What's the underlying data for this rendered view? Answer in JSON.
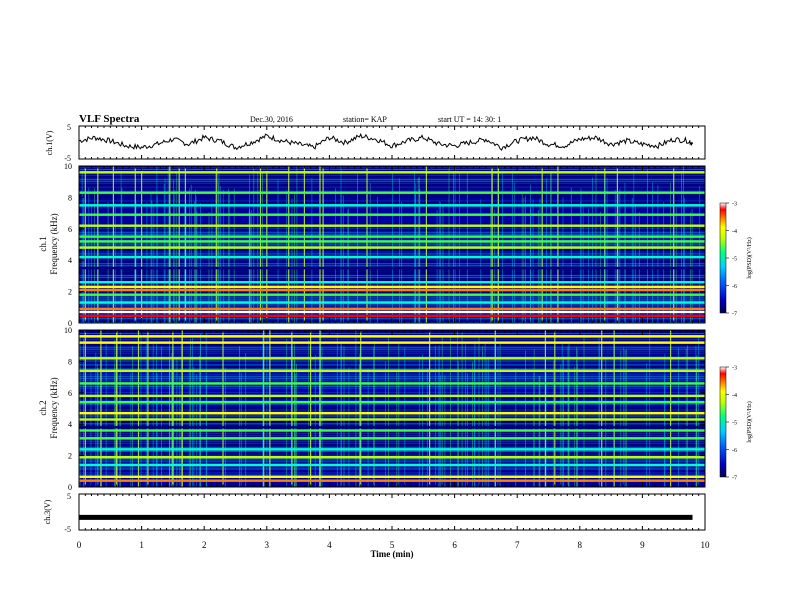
{
  "header": {
    "title": "VLF Spectra",
    "date": "Dec.30, 2016",
    "station": "station= KAP",
    "start": "start  UT =   14: 30: 1"
  },
  "colors": {
    "spectrogram_scale": [
      "#000050",
      "#00007a",
      "#0000c8",
      "#0040ff",
      "#00a0ff",
      "#00ffd0",
      "#40ff40",
      "#c0ff00",
      "#ffff00",
      "#ff8000",
      "#ff0000",
      "#ffffff"
    ],
    "line": "#000000"
  },
  "chart_data": [
    {
      "type": "line",
      "ylabel": "ch.1(V)",
      "ylim": [
        -5,
        5
      ],
      "yticks": [
        "5",
        "-5"
      ],
      "xlim": [
        0,
        10
      ],
      "note_values": "noisy waveform oscillating roughly between -2 and 2 V",
      "series": [
        {
          "x": [
            0,
            0.25,
            0.5,
            0.75,
            1.0,
            1.25,
            1.5,
            1.75,
            2.0,
            2.25,
            2.5,
            2.75,
            3.0,
            3.25,
            3.5,
            3.75,
            4.0,
            4.25,
            4.5,
            4.75,
            5.0,
            5.25,
            5.5,
            5.75,
            6.0,
            6.25,
            6.5,
            6.75,
            7.0,
            7.25,
            7.5,
            7.75,
            8.0,
            8.25,
            8.5,
            8.75,
            9.0,
            9.25,
            9.5,
            9.75,
            9.8
          ],
          "y": [
            0.5,
            1.5,
            0.5,
            -1.0,
            -1.5,
            -0.5,
            1.0,
            -0.5,
            1.5,
            0.5,
            -1.5,
            0.0,
            2.0,
            0.5,
            -0.5,
            -1.5,
            1.5,
            0.0,
            2.0,
            1.0,
            -1.0,
            0.5,
            1.5,
            -0.5,
            -1.0,
            0.0,
            1.0,
            -1.5,
            0.5,
            1.5,
            -0.5,
            -1.0,
            1.0,
            1.5,
            -0.5,
            0.5,
            -0.5,
            -1.0,
            1.0,
            0.5,
            -0.5
          ]
        }
      ]
    },
    {
      "type": "heatmap",
      "ylabel": "ch.1\nFrequency  (kHz)",
      "ylim": [
        0,
        10
      ],
      "yticks": [
        "0",
        "2",
        "4",
        "6",
        "8",
        "10"
      ],
      "xlim": [
        0,
        10
      ],
      "colorbar": {
        "label": "log(PSD)(V²/Hz)",
        "range": [
          -7,
          -3
        ],
        "ticks": [
          "-3",
          "-4",
          "-5",
          "-6",
          "-7"
        ]
      },
      "bands": [
        {
          "freq": 0.45,
          "level": 9.5
        },
        {
          "freq": 0.7,
          "level": 10.5
        },
        {
          "freq": 0.9,
          "level": 9.0
        },
        {
          "freq": 1.3,
          "level": 5.0
        },
        {
          "freq": 1.8,
          "level": 6.0
        },
        {
          "freq": 2.1,
          "level": 8.5
        },
        {
          "freq": 2.3,
          "level": 8.0
        },
        {
          "freq": 2.6,
          "level": 4.5
        },
        {
          "freq": 3.5,
          "level": 0.5
        },
        {
          "freq": 4.2,
          "level": 4.5
        },
        {
          "freq": 4.8,
          "level": 6.5
        },
        {
          "freq": 5.2,
          "level": 6.0
        },
        {
          "freq": 5.5,
          "level": 5.5
        },
        {
          "freq": 6.2,
          "level": 6.5
        },
        {
          "freq": 6.9,
          "level": 5.5
        },
        {
          "freq": 7.5,
          "level": 4.5
        },
        {
          "freq": 8.3,
          "level": 6.0
        },
        {
          "freq": 9.6,
          "level": 6.5
        }
      ],
      "sferics_at_min": [
        0.1,
        0.3,
        0.55,
        0.9,
        1.0,
        1.45,
        1.6,
        1.7,
        2.2,
        2.9,
        3.0,
        3.35,
        3.6,
        3.85,
        3.9,
        4.6,
        5.55,
        6.6,
        6.7,
        7.4,
        7.65,
        8.4,
        8.6,
        9.5
      ]
    },
    {
      "type": "heatmap",
      "ylabel": "ch.2\nFrequency  (kHz)",
      "ylim": [
        0,
        10
      ],
      "yticks": [
        "0",
        "2",
        "4",
        "6",
        "8",
        "10"
      ],
      "xlim": [
        0,
        10
      ],
      "colorbar": {
        "label": "log(PSD)(V²/Hz)",
        "range": [
          -7,
          -3
        ],
        "ticks": [
          "-3",
          "-4",
          "-5",
          "-6",
          "-7"
        ]
      },
      "bands": [
        {
          "freq": 0.4,
          "level": 8.5
        },
        {
          "freq": 0.65,
          "level": 7.5
        },
        {
          "freq": 1.4,
          "level": 4.5
        },
        {
          "freq": 1.9,
          "level": 7.0
        },
        {
          "freq": 2.4,
          "level": 5.0
        },
        {
          "freq": 3.1,
          "level": 6.0
        },
        {
          "freq": 3.6,
          "level": 5.5
        },
        {
          "freq": 3.8,
          "level": 0.5
        },
        {
          "freq": 4.3,
          "level": 6.5
        },
        {
          "freq": 4.7,
          "level": 7.5
        },
        {
          "freq": 5.4,
          "level": 6.0
        },
        {
          "freq": 5.8,
          "level": 7.0
        },
        {
          "freq": 6.6,
          "level": 6.0
        },
        {
          "freq": 7.4,
          "level": 7.0
        },
        {
          "freq": 8.2,
          "level": 6.5
        },
        {
          "freq": 9.2,
          "level": 7.5
        },
        {
          "freq": 9.6,
          "level": 8.0
        }
      ],
      "sferics_at_min": [
        0.1,
        0.35,
        0.6,
        0.95,
        1.1,
        1.5,
        1.65,
        2.3,
        2.95,
        3.05,
        3.4,
        3.7,
        3.85,
        4.5,
        5.6,
        6.65,
        7.45,
        7.6,
        8.35,
        8.55,
        9.45
      ]
    },
    {
      "type": "line",
      "ylabel": "ch.3(V)",
      "ylim": [
        -5,
        5
      ],
      "yticks": [
        "5",
        "-5"
      ],
      "xlim": [
        0,
        10
      ],
      "series": [
        {
          "x": [
            0,
            9.8
          ],
          "y": [
            -1.5,
            -1.5
          ]
        }
      ]
    }
  ],
  "xaxis": {
    "label": "Time  (min)",
    "ticks": [
      "0",
      "1",
      "2",
      "3",
      "4",
      "5",
      "6",
      "7",
      "8",
      "9",
      "10"
    ]
  }
}
